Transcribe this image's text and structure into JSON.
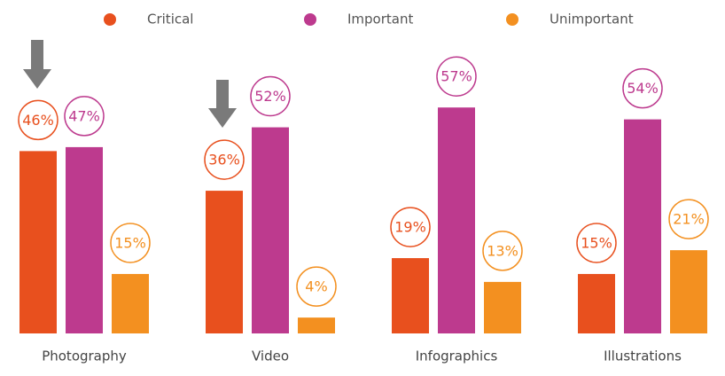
{
  "chart_data": {
    "type": "bar",
    "categories": [
      "Photography",
      "Video",
      "Infographics",
      "Illustrations"
    ],
    "series": [
      {
        "name": "Critical",
        "color": "#e8501e",
        "values": [
          46,
          36,
          19,
          15
        ],
        "value_labels": [
          "46%",
          "36%",
          "19%",
          "15%"
        ]
      },
      {
        "name": "Important",
        "color": "#bd3a8e",
        "values": [
          47,
          52,
          57,
          54
        ],
        "value_labels": [
          "47%",
          "52%",
          "57%",
          "54%"
        ]
      },
      {
        "name": "Unimportant",
        "color": "#f39020",
        "values": [
          15,
          4,
          13,
          21
        ],
        "value_labels": [
          "15%",
          "4%",
          "13%",
          "21%"
        ]
      }
    ]
  }
}
